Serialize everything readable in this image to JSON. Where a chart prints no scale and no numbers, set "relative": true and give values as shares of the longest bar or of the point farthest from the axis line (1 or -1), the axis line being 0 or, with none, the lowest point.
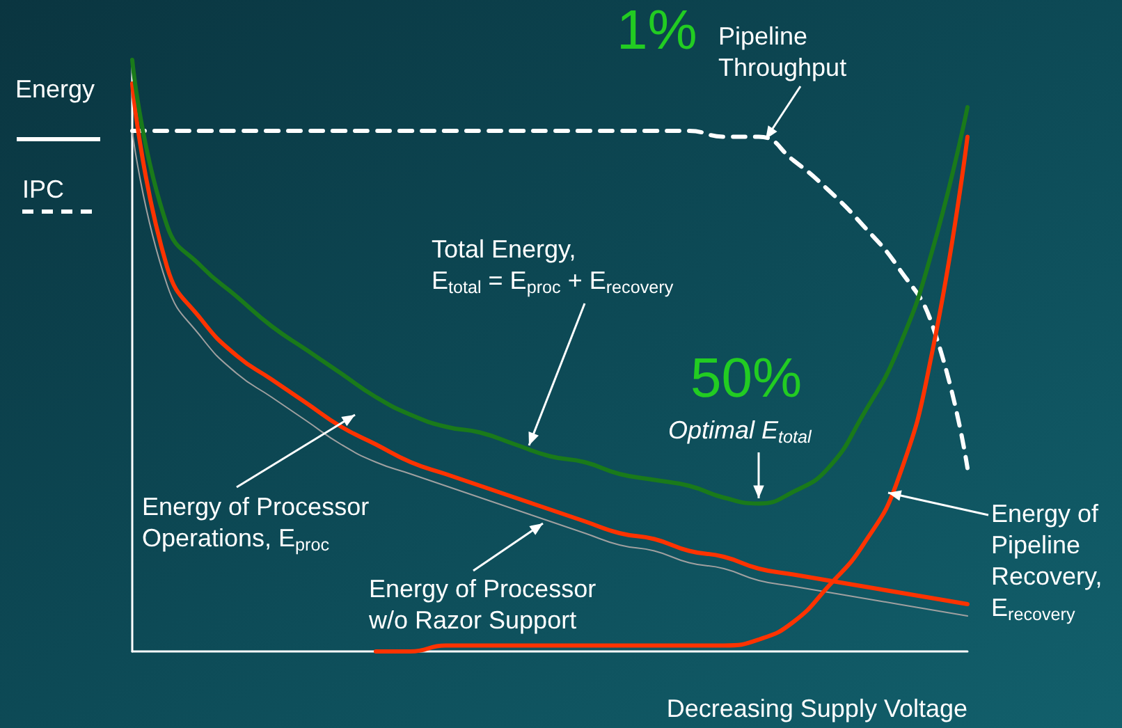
{
  "chart_data": {
    "type": "line",
    "relative": true,
    "xlabel": "Decreasing Supply Voltage",
    "ylabel": "Energy",
    "marker": "none",
    "grid": false,
    "categories": [
      null,
      null,
      null,
      null,
      null,
      null,
      null,
      null,
      null,
      null,
      null,
      null,
      null,
      null,
      null,
      null,
      null,
      null,
      null,
      null,
      null,
      null,
      null,
      null,
      null
    ],
    "series": [
      {
        "color": "#ffffff",
        "line_style": "dashed",
        "values": [
          0.88,
          0.88,
          0.88,
          0.88,
          0.88,
          0.88,
          0.88,
          0.88,
          0.88,
          0.88,
          0.88,
          0.88,
          0.88,
          0.88,
          0.88,
          0.88,
          0.88,
          0.87,
          0.87,
          0.83,
          0.78,
          0.72,
          0.65,
          0.55,
          0.31
        ]
      },
      {
        "color": "#a0a0a0",
        "values": [
          0.88,
          0.62,
          0.53,
          0.47,
          0.43,
          0.39,
          0.35,
          0.32,
          0.3,
          0.28,
          0.26,
          0.24,
          0.22,
          0.2,
          0.18,
          0.17,
          0.15,
          0.14,
          0.12,
          0.11,
          0.1,
          0.09,
          0.08,
          0.07,
          0.06
        ]
      },
      {
        "color": "#ff3300",
        "values": [
          0.96,
          0.65,
          0.56,
          0.5,
          0.46,
          0.42,
          0.38,
          0.35,
          0.32,
          0.3,
          0.28,
          0.26,
          0.24,
          0.22,
          0.2,
          0.19,
          0.17,
          0.16,
          0.14,
          0.13,
          0.12,
          0.11,
          0.1,
          0.09,
          0.08
        ]
      },
      {
        "color": "#ff3300",
        "values": [
          null,
          null,
          null,
          null,
          null,
          null,
          null,
          0.0,
          0.0,
          0.01,
          0.01,
          0.01,
          0.01,
          0.01,
          0.01,
          0.01,
          0.01,
          0.01,
          0.02,
          0.05,
          0.11,
          0.18,
          0.29,
          0.51,
          0.87
        ]
      },
      {
        "color": "#1a7a1a",
        "values": [
          1.0,
          0.72,
          0.65,
          0.6,
          0.55,
          0.51,
          0.47,
          0.43,
          0.4,
          0.38,
          0.37,
          0.35,
          0.33,
          0.32,
          0.3,
          0.29,
          0.28,
          0.26,
          0.25,
          0.27,
          0.31,
          0.4,
          0.51,
          0.68,
          0.92
        ]
      }
    ],
    "annotations": [
      "IPC",
      "1%",
      "Pipeline\nThroughput",
      "Total Energy,\nE$_{total}$ = E$_{proc}$ + E$_{recovery}$",
      "50%",
      "Optimal E$_{total}$",
      "Energy of Processor\nOperations, E$_{proc}$",
      "Energy of Processor\nw/o Razor Support",
      "Energy of\nPipeline\nRecovery,\nE$_{recovery}$"
    ]
  }
}
